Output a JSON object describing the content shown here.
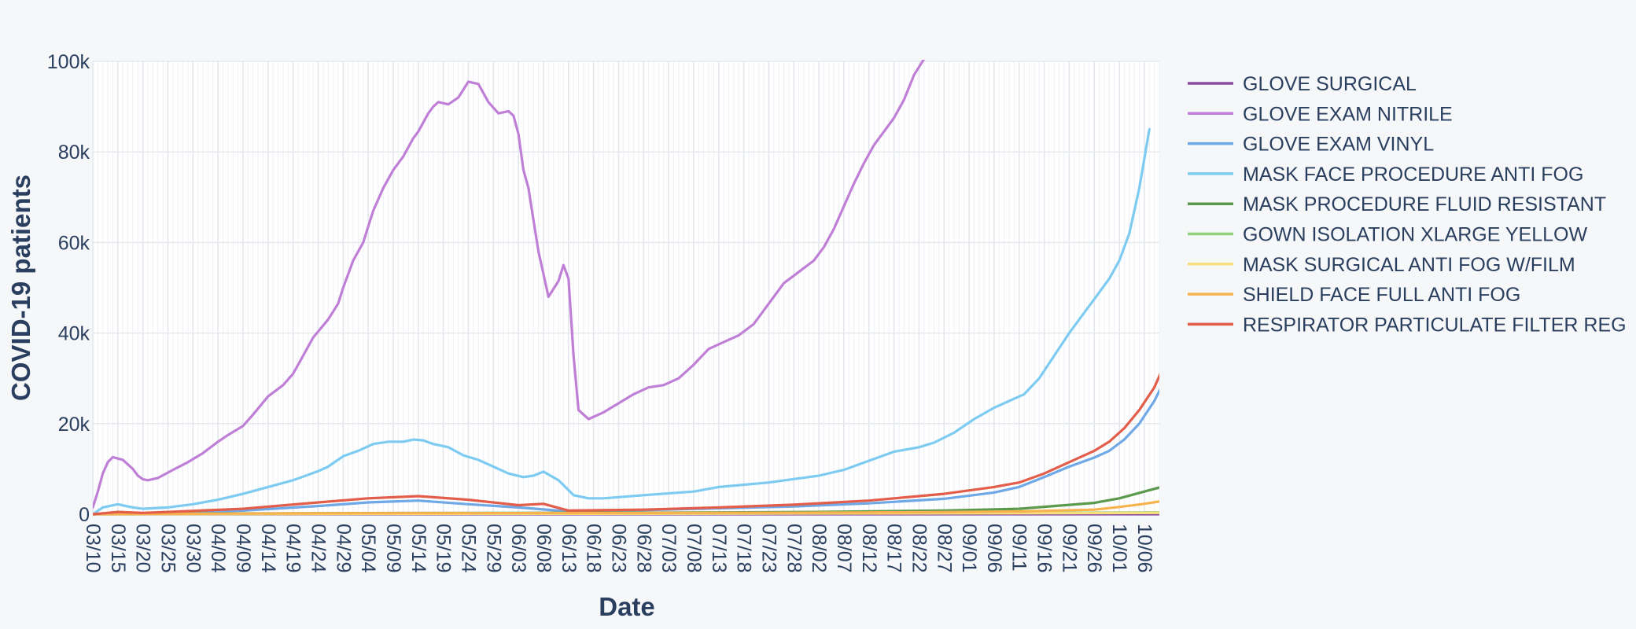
{
  "chart_data": {
    "type": "line",
    "xlabel": "Date",
    "ylabel": "COVID-19 patients",
    "ylim": [
      0,
      100000
    ],
    "y_ticks": [
      0,
      20000,
      40000,
      60000,
      80000,
      100000
    ],
    "y_tick_labels": [
      "0",
      "20k",
      "40k",
      "60k",
      "80k",
      "100k"
    ],
    "x_range": [
      "2020-03-10",
      "2020-10-09"
    ],
    "x_ticks": [
      "2020-03-10",
      "2020-03-15",
      "2020-03-20",
      "2020-03-25",
      "2020-03-30",
      "2020-04-04",
      "2020-04-09",
      "2020-04-14",
      "2020-04-19",
      "2020-04-24",
      "2020-04-29",
      "2020-05-04",
      "2020-05-09",
      "2020-05-14",
      "2020-05-19",
      "2020-05-24",
      "2020-05-29",
      "2020-06-03",
      "2020-06-08",
      "2020-06-13",
      "2020-06-18",
      "2020-06-23",
      "2020-06-28",
      "2020-07-03",
      "2020-07-08",
      "2020-07-13",
      "2020-07-18",
      "2020-07-23",
      "2020-07-28",
      "2020-08-02",
      "2020-08-07",
      "2020-08-12",
      "2020-08-17",
      "2020-08-22",
      "2020-08-27",
      "2020-09-01",
      "2020-09-06",
      "2020-09-11",
      "2020-09-16",
      "2020-09-21",
      "2020-09-26",
      "2020-10-01",
      "2020-10-06"
    ],
    "x_tick_labels": [
      "03/10",
      "03/15",
      "03/20",
      "03/25",
      "03/30",
      "04/04",
      "04/09",
      "04/14",
      "04/19",
      "04/24",
      "04/29",
      "05/04",
      "05/09",
      "05/14",
      "05/19",
      "05/24",
      "05/29",
      "06/03",
      "06/08",
      "06/13",
      "06/18",
      "06/23",
      "06/28",
      "07/03",
      "07/08",
      "07/13",
      "07/18",
      "07/23",
      "07/28",
      "08/02",
      "08/07",
      "08/12",
      "08/17",
      "08/22",
      "08/27",
      "09/01",
      "09/06",
      "09/11",
      "09/16",
      "09/21",
      "09/26",
      "10/01",
      "10/06"
    ],
    "grid": true,
    "legend_position": "right",
    "series": [
      {
        "name": "GLOVE SURGICAL",
        "color": "#8b4ba0",
        "x": [
          "2020-03-10",
          "2020-10-09"
        ],
        "values": [
          0,
          0
        ]
      },
      {
        "name": "GLOVE EXAM NITRILE",
        "color": "#c07fd6",
        "x": [
          "2020-03-10",
          "2020-03-11",
          "2020-03-12",
          "2020-03-13",
          "2020-03-14",
          "2020-03-16",
          "2020-03-18",
          "2020-03-19",
          "2020-03-20",
          "2020-03-21",
          "2020-03-23",
          "2020-03-26",
          "2020-03-29",
          "2020-04-01",
          "2020-04-04",
          "2020-04-06",
          "2020-04-09",
          "2020-04-11",
          "2020-04-14",
          "2020-04-17",
          "2020-04-19",
          "2020-04-21",
          "2020-04-23",
          "2020-04-26",
          "2020-04-28",
          "2020-04-29",
          "2020-05-01",
          "2020-05-03",
          "2020-05-04",
          "2020-05-05",
          "2020-05-07",
          "2020-05-09",
          "2020-05-11",
          "2020-05-13",
          "2020-05-14",
          "2020-05-16",
          "2020-05-17",
          "2020-05-18",
          "2020-05-20",
          "2020-05-22",
          "2020-05-24",
          "2020-05-26",
          "2020-05-28",
          "2020-05-30",
          "2020-06-01",
          "2020-06-02",
          "2020-06-03",
          "2020-06-04",
          "2020-06-05",
          "2020-06-06",
          "2020-06-07",
          "2020-06-08",
          "2020-06-09",
          "2020-06-11",
          "2020-06-12",
          "2020-06-13",
          "2020-06-14",
          "2020-06-15",
          "2020-06-17",
          "2020-06-20",
          "2020-06-23",
          "2020-06-26",
          "2020-06-29",
          "2020-07-02",
          "2020-07-05",
          "2020-07-08",
          "2020-07-11",
          "2020-07-14",
          "2020-07-17",
          "2020-07-20",
          "2020-07-23",
          "2020-07-26",
          "2020-07-29",
          "2020-08-01",
          "2020-08-03",
          "2020-08-05",
          "2020-08-07",
          "2020-08-09",
          "2020-08-11",
          "2020-08-13",
          "2020-08-15",
          "2020-08-17",
          "2020-08-19",
          "2020-08-21",
          "2020-08-23",
          "2020-08-25",
          "2020-08-27",
          "2020-08-28"
        ],
        "values": [
          1500,
          5000,
          9000,
          11500,
          12600,
          12000,
          10000,
          8500,
          7700,
          7500,
          8000,
          9800,
          11500,
          13500,
          16000,
          17500,
          19500,
          22000,
          26000,
          28500,
          31000,
          35000,
          39000,
          43000,
          46500,
          50000,
          56000,
          60000,
          63500,
          67000,
          72000,
          76000,
          79000,
          83000,
          84500,
          88500,
          90000,
          91000,
          90500,
          92000,
          95500,
          95000,
          91000,
          88500,
          89000,
          88000,
          84000,
          76000,
          72000,
          65000,
          58000,
          53000,
          48000,
          51500,
          55000,
          52000,
          35000,
          23000,
          21000,
          22500,
          24500,
          26500,
          28000,
          28500,
          30000,
          33000,
          36500,
          38000,
          39500,
          42000,
          46500,
          51000,
          53500,
          56000,
          59000,
          63000,
          68000,
          73000,
          77500,
          81500,
          84500,
          87500,
          91500,
          97000,
          100500,
          104000,
          108000,
          112000
        ]
      },
      {
        "name": "GLOVE EXAM VINYL",
        "color": "#6fa8e6",
        "x": [
          "2020-03-10",
          "2020-03-15",
          "2020-03-25",
          "2020-04-09",
          "2020-04-24",
          "2020-05-04",
          "2020-05-14",
          "2020-05-24",
          "2020-06-03",
          "2020-06-13",
          "2020-06-28",
          "2020-07-13",
          "2020-07-28",
          "2020-08-12",
          "2020-08-27",
          "2020-09-06",
          "2020-09-11",
          "2020-09-16",
          "2020-09-21",
          "2020-09-26",
          "2020-09-29",
          "2020-10-02",
          "2020-10-05",
          "2020-10-08",
          "2020-10-10"
        ],
        "values": [
          0,
          200,
          300,
          800,
          1800,
          2600,
          3000,
          2200,
          1500,
          600,
          900,
          1300,
          1700,
          2400,
          3400,
          4800,
          6000,
          8200,
          10500,
          12500,
          14000,
          16500,
          20000,
          25000,
          29500
        ]
      },
      {
        "name": "MASK FACE PROCEDURE ANTI FOG",
        "color": "#7ecbf2",
        "x": [
          "2020-03-10",
          "2020-03-12",
          "2020-03-15",
          "2020-03-18",
          "2020-03-20",
          "2020-03-25",
          "2020-03-30",
          "2020-04-04",
          "2020-04-09",
          "2020-04-14",
          "2020-04-19",
          "2020-04-24",
          "2020-04-26",
          "2020-04-29",
          "2020-05-02",
          "2020-05-05",
          "2020-05-08",
          "2020-05-11",
          "2020-05-13",
          "2020-05-15",
          "2020-05-17",
          "2020-05-20",
          "2020-05-23",
          "2020-05-26",
          "2020-05-29",
          "2020-06-01",
          "2020-06-04",
          "2020-06-06",
          "2020-06-08",
          "2020-06-11",
          "2020-06-14",
          "2020-06-17",
          "2020-06-20",
          "2020-06-28",
          "2020-07-08",
          "2020-07-13",
          "2020-07-23",
          "2020-08-02",
          "2020-08-07",
          "2020-08-12",
          "2020-08-17",
          "2020-08-22",
          "2020-08-25",
          "2020-08-29",
          "2020-09-02",
          "2020-09-06",
          "2020-09-09",
          "2020-09-12",
          "2020-09-15",
          "2020-09-18",
          "2020-09-21",
          "2020-09-24",
          "2020-09-27",
          "2020-09-29",
          "2020-10-01",
          "2020-10-03",
          "2020-10-05",
          "2020-10-07"
        ],
        "values": [
          0,
          1500,
          2200,
          1500,
          1200,
          1500,
          2200,
          3200,
          4500,
          6000,
          7500,
          9500,
          10500,
          12800,
          14000,
          15500,
          16000,
          16000,
          16500,
          16300,
          15500,
          14800,
          13000,
          12000,
          10500,
          9000,
          8200,
          8500,
          9400,
          7500,
          4200,
          3500,
          3500,
          4200,
          5000,
          6000,
          7000,
          8500,
          9800,
          11800,
          13800,
          14800,
          15800,
          18000,
          21000,
          23500,
          25000,
          26500,
          30000,
          35000,
          40000,
          44500,
          49000,
          52000,
          56000,
          62000,
          72000,
          85000
        ]
      },
      {
        "name": "MASK PROCEDURE FLUID RESISTANT",
        "color": "#5b9a4c",
        "x": [
          "2020-03-10",
          "2020-04-04",
          "2020-05-04",
          "2020-06-03",
          "2020-07-03",
          "2020-08-02",
          "2020-08-27",
          "2020-09-11",
          "2020-09-26",
          "2020-10-01",
          "2020-10-06",
          "2020-10-10"
        ],
        "values": [
          0,
          150,
          250,
          300,
          350,
          500,
          800,
          1200,
          2500,
          3500,
          5000,
          6200
        ]
      },
      {
        "name": "GOWN ISOLATION XLARGE YELLOW",
        "color": "#8fd27c",
        "x": [
          "2020-03-10",
          "2020-05-04",
          "2020-07-03",
          "2020-09-01",
          "2020-10-10"
        ],
        "values": [
          0,
          100,
          150,
          250,
          400
        ]
      },
      {
        "name": "MASK SURGICAL ANTI FOG W/FILM",
        "color": "#f6e07e",
        "x": [
          "2020-03-10",
          "2020-05-04",
          "2020-07-03",
          "2020-09-01",
          "2020-10-10"
        ],
        "values": [
          0,
          80,
          120,
          200,
          300
        ]
      },
      {
        "name": "SHIELD FACE FULL ANTI FOG",
        "color": "#f8b34f",
        "x": [
          "2020-03-10",
          "2020-04-04",
          "2020-05-04",
          "2020-06-03",
          "2020-07-03",
          "2020-08-02",
          "2020-08-27",
          "2020-09-11",
          "2020-09-26",
          "2020-10-01",
          "2020-10-06",
          "2020-10-10"
        ],
        "values": [
          0,
          120,
          220,
          250,
          280,
          350,
          450,
          600,
          1000,
          1600,
          2300,
          3000
        ]
      },
      {
        "name": "RESPIRATOR PARTICULATE FILTER REG",
        "color": "#e35d4b",
        "x": [
          "2020-03-10",
          "2020-03-15",
          "2020-03-20",
          "2020-03-25",
          "2020-04-09",
          "2020-04-24",
          "2020-05-04",
          "2020-05-14",
          "2020-05-24",
          "2020-06-03",
          "2020-06-08",
          "2020-06-13",
          "2020-06-28",
          "2020-07-13",
          "2020-07-28",
          "2020-08-12",
          "2020-08-27",
          "2020-09-06",
          "2020-09-11",
          "2020-09-16",
          "2020-09-21",
          "2020-09-26",
          "2020-09-29",
          "2020-10-02",
          "2020-10-05",
          "2020-10-08",
          "2020-10-10"
        ],
        "values": [
          0,
          500,
          300,
          500,
          1200,
          2600,
          3500,
          4000,
          3200,
          2000,
          2300,
          800,
          1000,
          1500,
          2100,
          3000,
          4500,
          6000,
          7000,
          9000,
          11500,
          14000,
          16000,
          19000,
          23000,
          28000,
          33000
        ]
      }
    ]
  }
}
